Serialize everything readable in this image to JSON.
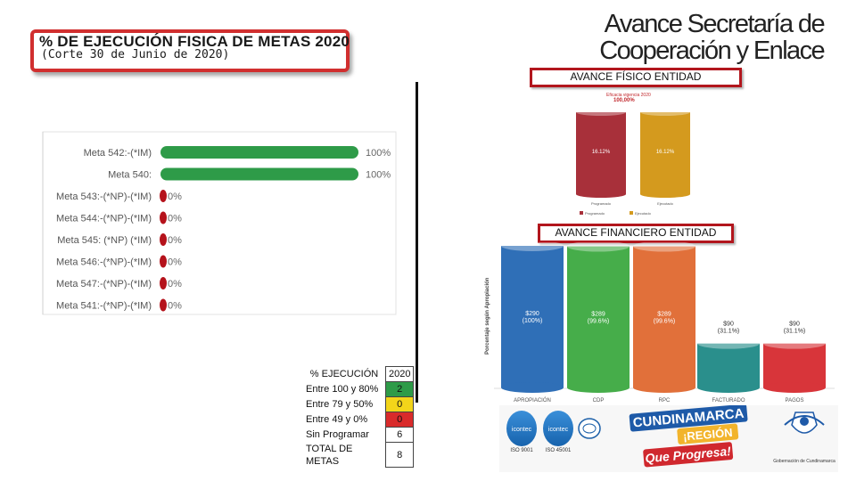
{
  "header": {
    "title": "% DE EJECUCIÓN FISICA DE METAS 2020",
    "subtitle": "(Corte 30 de Junio de 2020)",
    "heading_line1": "Avance Secretaría de",
    "heading_line2": "Cooperación y Enlace"
  },
  "labels": {
    "fisico": "AVANCE FÍSICO ENTIDAD",
    "financiero": "AVANCE FINANCIERO ENTIDAD"
  },
  "colors": {
    "accent_red": "#c0262b",
    "meta_green": "#2e9b48",
    "meta_red": "#b5121b",
    "fis_red": "#a8303a",
    "fis_gold": "#d49a1e",
    "fin_blue": "#2f6fb7",
    "fin_green": "#46ad4a",
    "fin_orange": "#e1703a",
    "fin_teal": "#2a8f8c",
    "fin_red": "#d8353a"
  },
  "chart_data": [
    {
      "type": "bar",
      "orientation": "horizontal",
      "categories": [
        "Meta 542:-(*IM)",
        "Meta 540:",
        "Meta 543:-(*NP)-(*IM)",
        "Meta 544:-(*NP)-(*IM)",
        "Meta 545: (*NP) (*IM)",
        "Meta 546:-(*NP)-(*IM)",
        "Meta 547:-(*NP)-(*IM)",
        "Meta 541:-(*NP)-(*IM)"
      ],
      "values": [
        100,
        100,
        0,
        0,
        0,
        0,
        0,
        0
      ],
      "value_labels": [
        "100%",
        "100%",
        "0%",
        "0%",
        "0%",
        "0%",
        "0%",
        "0%"
      ],
      "xlim": [
        0,
        100
      ]
    },
    {
      "type": "bar",
      "title": "Eficacia vigencia 2020",
      "title_value": "100,00%",
      "categories": [
        "Programado",
        "Ejecutado"
      ],
      "values": [
        16.12,
        16.12
      ],
      "value_labels": [
        "16.12%",
        "16.12%"
      ],
      "legend": [
        "Programado",
        "Ejecutado"
      ]
    },
    {
      "type": "bar",
      "ylabel": "Porcentaje según Apropiación",
      "categories": [
        "APROPIACIÓN",
        "CDP",
        "RPC",
        "FACTURADO",
        "PAGOS"
      ],
      "values": [
        290,
        289,
        289,
        90,
        90
      ],
      "value_labels": [
        "$290",
        "$289",
        "$289",
        "$90",
        "$90"
      ],
      "percent_labels": [
        "(100%)",
        "(99.6%)",
        "(99.6%)",
        "(31.1%)",
        "(31.1%)"
      ]
    }
  ],
  "summary_table": {
    "rows": [
      {
        "label": "% EJECUCIÓN",
        "value": "2020",
        "color": "#ffffff"
      },
      {
        "label": "Entre 100 y 80%",
        "value": "2",
        "color": "#2e9b48"
      },
      {
        "label": "Entre 79 y 50%",
        "value": "0",
        "color": "#f3d51a"
      },
      {
        "label": "Entre 49 y 0%",
        "value": "0",
        "color": "#d92b2b"
      },
      {
        "label": "Sin Programar",
        "value": "6",
        "color": "#ffffff"
      },
      {
        "label": "TOTAL DE METAS",
        "value": "8",
        "color": "#ffffff"
      }
    ]
  },
  "logos": {
    "cert1": "icontec",
    "cert1_sub": "ISO 9001",
    "cert2": "icontec",
    "cert2_sub": "ISO 45001",
    "brand_line1": "CUNDINAMARCA",
    "brand_line2": "¡REGIÓN",
    "brand_line3": "Que Progresa!",
    "gov_caption": "Gobernación de Cundinamarca"
  }
}
